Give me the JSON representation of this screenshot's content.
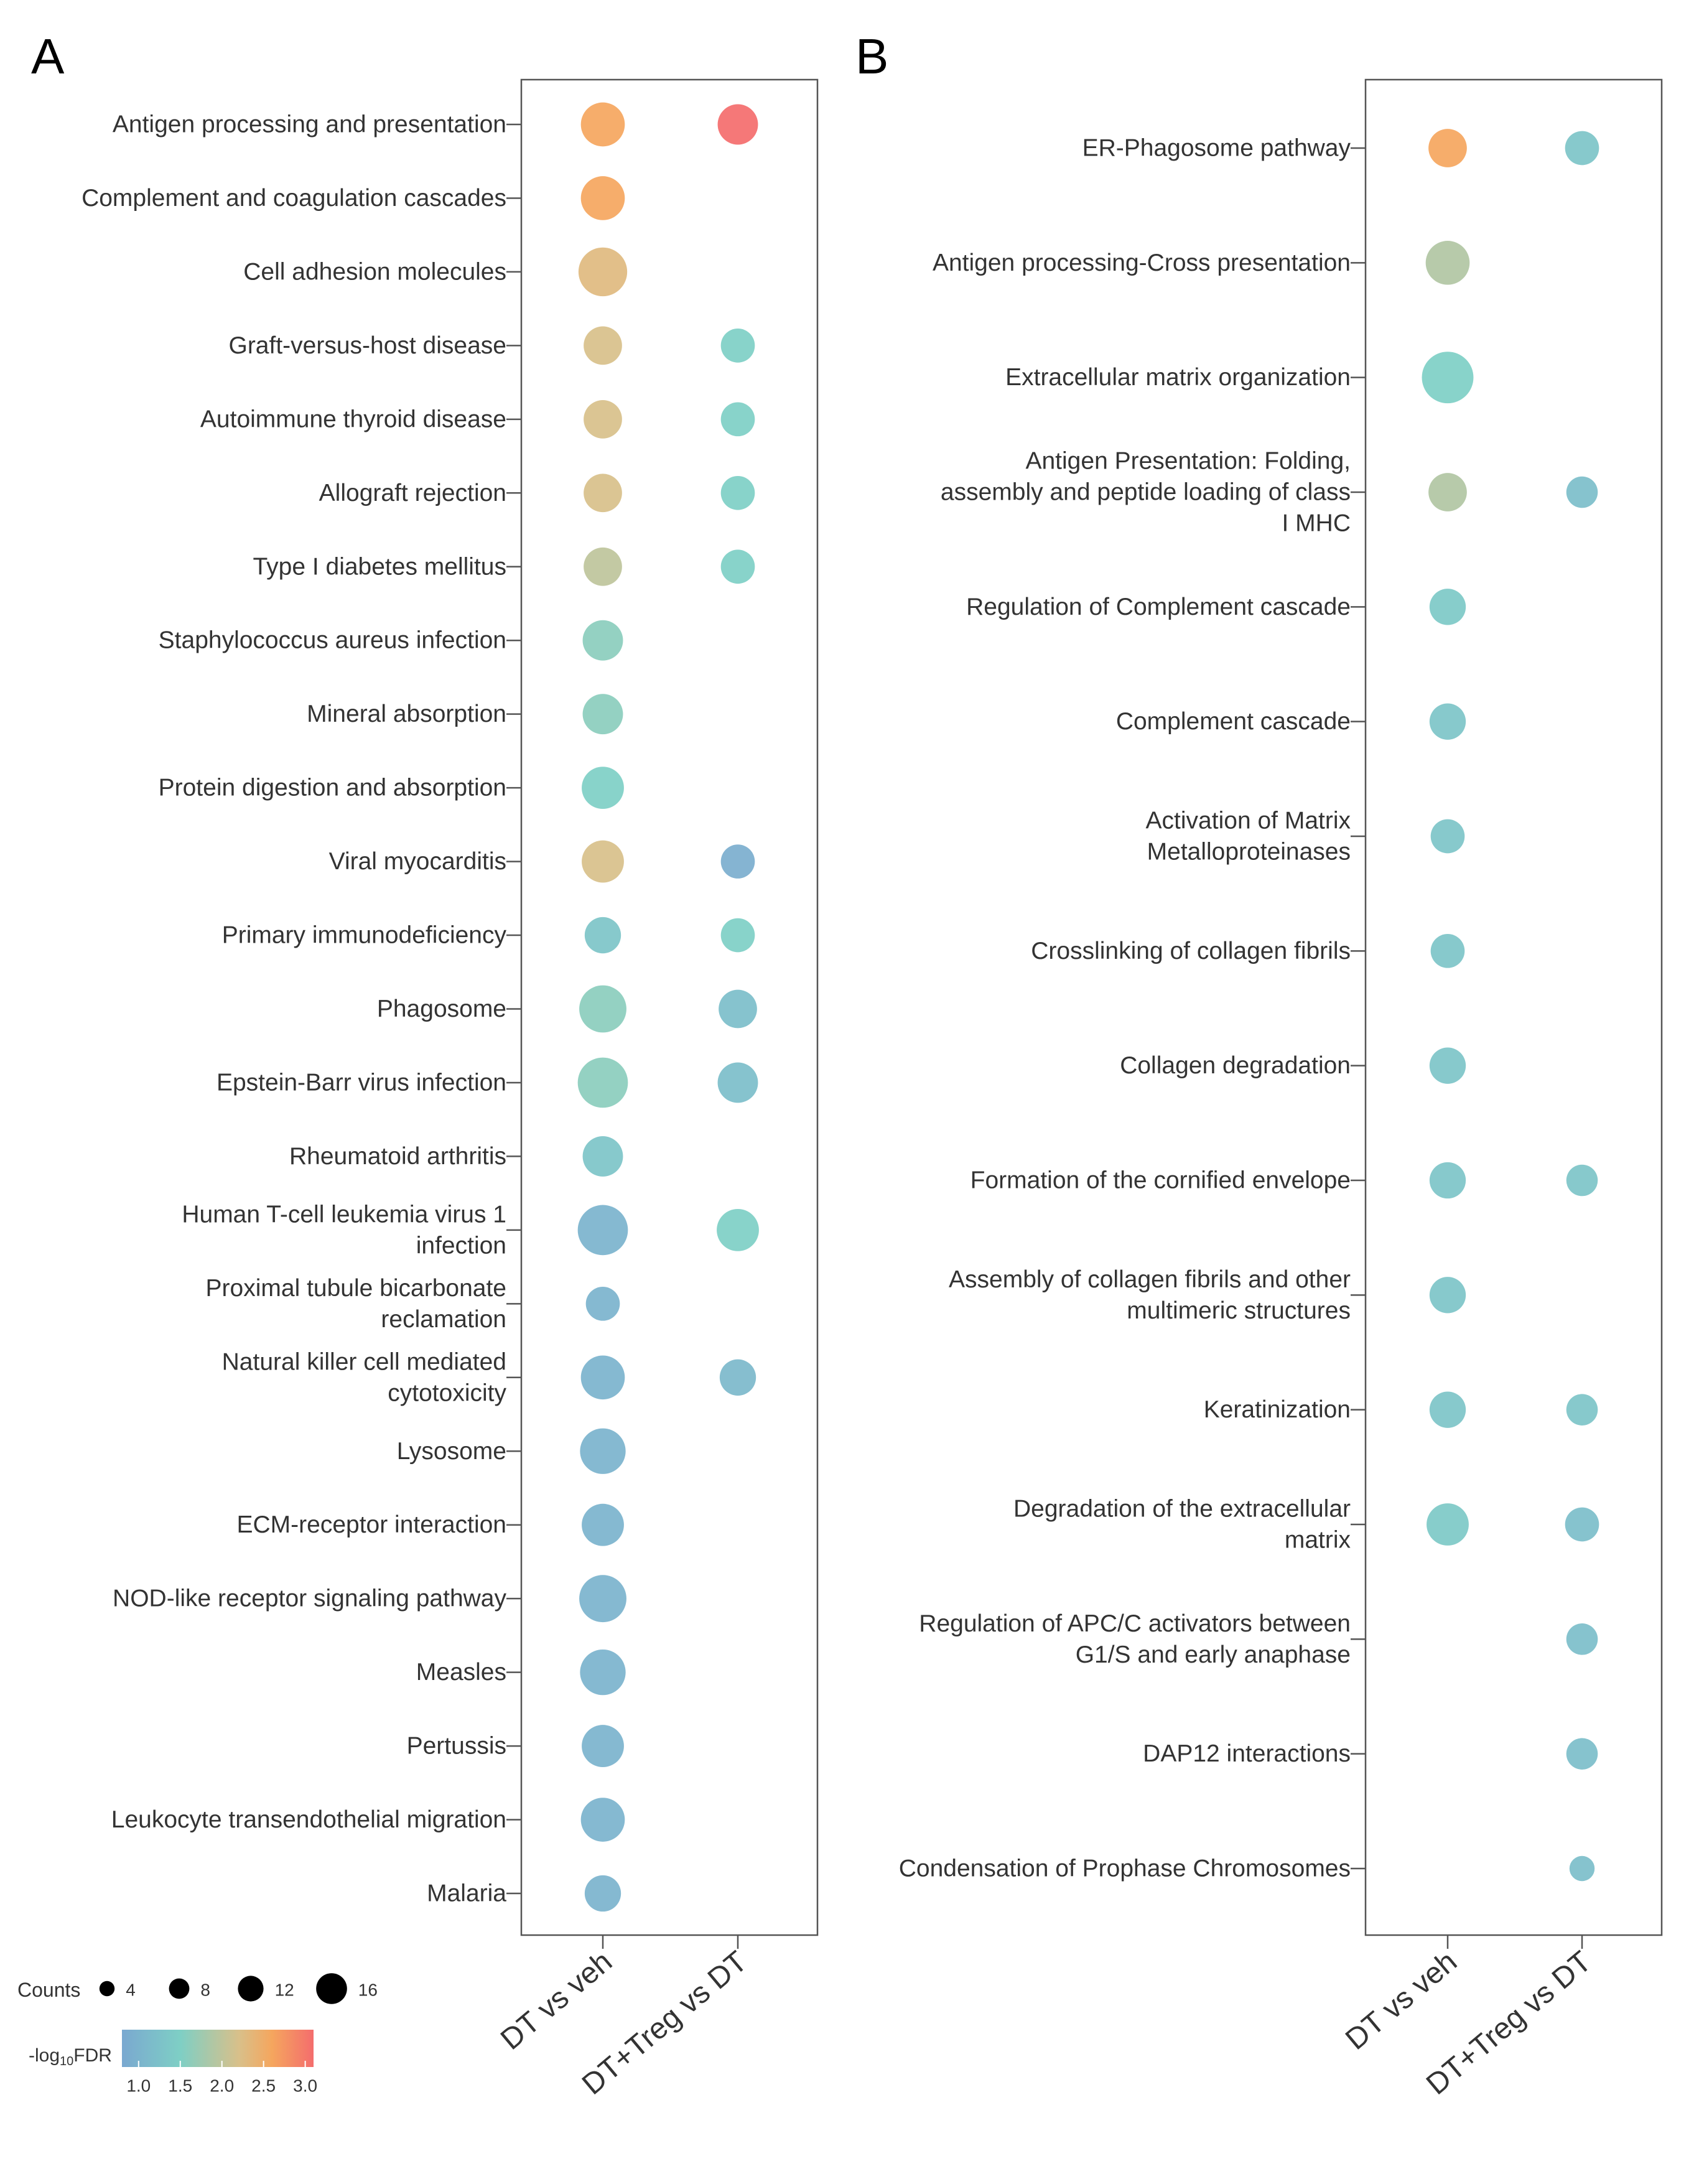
{
  "colorscale": {
    "stops": [
      {
        "v": 0.8,
        "c": "#7AA8D0"
      },
      {
        "v": 1.5,
        "c": "#7ECFC5"
      },
      {
        "v": 2.2,
        "c": "#D8C08A"
      },
      {
        "v": 2.6,
        "c": "#F5A65E"
      },
      {
        "v": 3.1,
        "c": "#F46D6D"
      }
    ]
  },
  "legend": {
    "counts_title": "Counts",
    "counts_values": [
      4,
      8,
      12,
      16
    ],
    "counts_labels": [
      "4",
      "8",
      "12",
      "16"
    ],
    "fdr_title_prefix": "-log",
    "fdr_title_sub": "10",
    "fdr_title_suffix": "FDR",
    "fdr_ticks": [
      "1.0",
      "1.5",
      "2.0",
      "2.5",
      "3.0"
    ]
  },
  "chart_data": [
    {
      "type": "scatter",
      "panel": "A",
      "categories_x": [
        "DT vs veh",
        "DT+Treg vs DT"
      ],
      "pathways": [
        {
          "label": [
            "Antigen processing and presentation"
          ],
          "points": [
            {
              "x": 0,
              "count": 10,
              "fdr": 2.6
            },
            {
              "x": 1,
              "count": 8,
              "fdr": 3.1
            }
          ]
        },
        {
          "label": [
            "Complement and coagulation cascades"
          ],
          "points": [
            {
              "x": 0,
              "count": 10,
              "fdr": 2.6
            }
          ]
        },
        {
          "label": [
            "Cell adhesion molecules"
          ],
          "points": [
            {
              "x": 0,
              "count": 13,
              "fdr": 2.3
            }
          ]
        },
        {
          "label": [
            "Graft-versus-host disease"
          ],
          "points": [
            {
              "x": 0,
              "count": 7,
              "fdr": 2.2
            },
            {
              "x": 1,
              "count": 5,
              "fdr": 1.5
            }
          ]
        },
        {
          "label": [
            "Autoimmune thyroid disease"
          ],
          "points": [
            {
              "x": 0,
              "count": 7,
              "fdr": 2.2
            },
            {
              "x": 1,
              "count": 5,
              "fdr": 1.5
            }
          ]
        },
        {
          "label": [
            "Allograft rejection"
          ],
          "points": [
            {
              "x": 0,
              "count": 7,
              "fdr": 2.2
            },
            {
              "x": 1,
              "count": 5,
              "fdr": 1.5
            }
          ]
        },
        {
          "label": [
            "Type I diabetes mellitus"
          ],
          "points": [
            {
              "x": 0,
              "count": 7,
              "fdr": 2.0
            },
            {
              "x": 1,
              "count": 5,
              "fdr": 1.5
            }
          ]
        },
        {
          "label": [
            "Staphylococcus aureus infection"
          ],
          "points": [
            {
              "x": 0,
              "count": 8,
              "fdr": 1.6
            }
          ]
        },
        {
          "label": [
            "Mineral absorption"
          ],
          "points": [
            {
              "x": 0,
              "count": 8,
              "fdr": 1.6
            }
          ]
        },
        {
          "label": [
            "Protein digestion and absorption"
          ],
          "points": [
            {
              "x": 0,
              "count": 9,
              "fdr": 1.5
            }
          ]
        },
        {
          "label": [
            "Viral myocarditis"
          ],
          "points": [
            {
              "x": 0,
              "count": 9,
              "fdr": 2.2
            },
            {
              "x": 1,
              "count": 5,
              "fdr": 0.9
            }
          ]
        },
        {
          "label": [
            "Primary immunodeficiency"
          ],
          "points": [
            {
              "x": 0,
              "count": 6,
              "fdr": 1.3
            },
            {
              "x": 1,
              "count": 5,
              "fdr": 1.5
            }
          ]
        },
        {
          "label": [
            "Phagosome"
          ],
          "points": [
            {
              "x": 0,
              "count": 12,
              "fdr": 1.6
            },
            {
              "x": 1,
              "count": 7,
              "fdr": 1.2
            }
          ]
        },
        {
          "label": [
            "Epstein-Barr virus infection"
          ],
          "points": [
            {
              "x": 0,
              "count": 14,
              "fdr": 1.6
            },
            {
              "x": 1,
              "count": 8,
              "fdr": 1.2
            }
          ]
        },
        {
          "label": [
            "Rheumatoid arthritis"
          ],
          "points": [
            {
              "x": 0,
              "count": 8,
              "fdr": 1.3
            }
          ]
        },
        {
          "label": [
            "Human T-cell leukemia virus 1",
            "infection"
          ],
          "points": [
            {
              "x": 0,
              "count": 14,
              "fdr": 1.0
            },
            {
              "x": 1,
              "count": 9,
              "fdr": 1.5
            }
          ]
        },
        {
          "label": [
            "Proximal tubule bicarbonate",
            "reclamation"
          ],
          "points": [
            {
              "x": 0,
              "count": 5,
              "fdr": 1.0
            }
          ]
        },
        {
          "label": [
            "Natural killer cell mediated",
            "cytotoxicity"
          ],
          "points": [
            {
              "x": 0,
              "count": 10,
              "fdr": 1.0
            },
            {
              "x": 1,
              "count": 6,
              "fdr": 1.1
            }
          ]
        },
        {
          "label": [
            "Lysosome"
          ],
          "points": [
            {
              "x": 0,
              "count": 11,
              "fdr": 1.0
            }
          ]
        },
        {
          "label": [
            "ECM-receptor interaction"
          ],
          "points": [
            {
              "x": 0,
              "count": 9,
              "fdr": 1.0
            }
          ]
        },
        {
          "label": [
            "NOD-like receptor signaling pathway"
          ],
          "points": [
            {
              "x": 0,
              "count": 12,
              "fdr": 1.0
            }
          ]
        },
        {
          "label": [
            "Measles"
          ],
          "points": [
            {
              "x": 0,
              "count": 11,
              "fdr": 1.0
            }
          ]
        },
        {
          "label": [
            "Pertussis"
          ],
          "points": [
            {
              "x": 0,
              "count": 9,
              "fdr": 1.0
            }
          ]
        },
        {
          "label": [
            "Leukocyte transendothelial migration"
          ],
          "points": [
            {
              "x": 0,
              "count": 10,
              "fdr": 1.0
            }
          ]
        },
        {
          "label": [
            "Malaria"
          ],
          "points": [
            {
              "x": 0,
              "count": 6,
              "fdr": 1.0
            }
          ]
        }
      ]
    },
    {
      "type": "scatter",
      "panel": "B",
      "categories_x": [
        "DT vs veh",
        "DT+Treg vs DT"
      ],
      "pathways": [
        {
          "label": [
            "ER-Phagosome pathway"
          ],
          "points": [
            {
              "x": 0,
              "count": 7,
              "fdr": 2.6
            },
            {
              "x": 1,
              "count": 5,
              "fdr": 1.3
            }
          ]
        },
        {
          "label": [
            "Antigen processing-Cross presentation"
          ],
          "points": [
            {
              "x": 0,
              "count": 10,
              "fdr": 1.9
            }
          ]
        },
        {
          "label": [
            "Extracellular matrix organization"
          ],
          "points": [
            {
              "x": 0,
              "count": 15,
              "fdr": 1.5
            }
          ]
        },
        {
          "label": [
            "Antigen Presentation: Folding,",
            "assembly and peptide loading of class",
            "I MHC"
          ],
          "points": [
            {
              "x": 0,
              "count": 7,
              "fdr": 1.9
            },
            {
              "x": 1,
              "count": 4,
              "fdr": 1.2
            }
          ]
        },
        {
          "label": [
            "Regulation of Complement cascade"
          ],
          "points": [
            {
              "x": 0,
              "count": 6,
              "fdr": 1.4
            }
          ]
        },
        {
          "label": [
            "Complement cascade"
          ],
          "points": [
            {
              "x": 0,
              "count": 6,
              "fdr": 1.3
            }
          ]
        },
        {
          "label": [
            "Activation of Matrix",
            "Metalloproteinases"
          ],
          "points": [
            {
              "x": 0,
              "count": 5,
              "fdr": 1.3
            }
          ]
        },
        {
          "label": [
            "Crosslinking of collagen fibrils"
          ],
          "points": [
            {
              "x": 0,
              "count": 5,
              "fdr": 1.3
            }
          ]
        },
        {
          "label": [
            "Collagen degradation"
          ],
          "points": [
            {
              "x": 0,
              "count": 6,
              "fdr": 1.3
            }
          ]
        },
        {
          "label": [
            "Formation of the cornified envelope"
          ],
          "points": [
            {
              "x": 0,
              "count": 6,
              "fdr": 1.3
            },
            {
              "x": 1,
              "count": 4,
              "fdr": 1.3
            }
          ]
        },
        {
          "label": [
            "Assembly of collagen fibrils and other",
            "multimeric structures"
          ],
          "points": [
            {
              "x": 0,
              "count": 6,
              "fdr": 1.3
            }
          ]
        },
        {
          "label": [
            "Keratinization"
          ],
          "points": [
            {
              "x": 0,
              "count": 6,
              "fdr": 1.3
            },
            {
              "x": 1,
              "count": 4,
              "fdr": 1.3
            }
          ]
        },
        {
          "label": [
            "Degradation of the extracellular",
            "matrix"
          ],
          "points": [
            {
              "x": 0,
              "count": 9,
              "fdr": 1.4
            },
            {
              "x": 1,
              "count": 5,
              "fdr": 1.2
            }
          ]
        },
        {
          "label": [
            "Regulation of APC/C activators between",
            "G1/S and early anaphase"
          ],
          "points": [
            {
              "x": 1,
              "count": 4,
              "fdr": 1.2
            }
          ]
        },
        {
          "label": [
            "DAP12 interactions"
          ],
          "points": [
            {
              "x": 1,
              "count": 4,
              "fdr": 1.2
            }
          ]
        },
        {
          "label": [
            "Condensation of Prophase Chromosomes"
          ],
          "points": [
            {
              "x": 1,
              "count": 2,
              "fdr": 1.2
            }
          ]
        }
      ]
    }
  ]
}
